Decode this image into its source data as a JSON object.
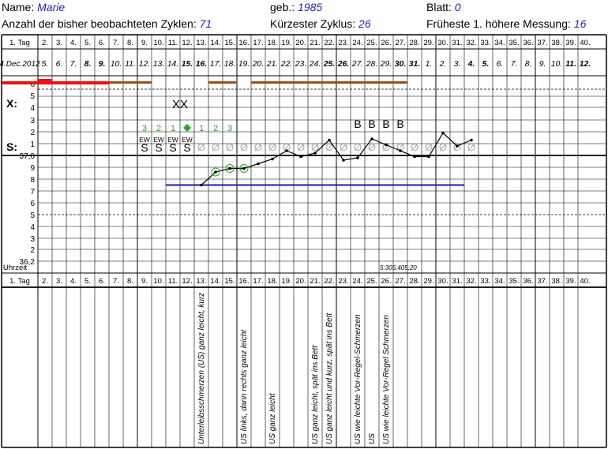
{
  "header": {
    "name_label": "Name:",
    "name_value": "Marie",
    "born_label": "geb.:",
    "born_value": "1985",
    "sheet_label": "Blatt:",
    "sheet_value": "0",
    "cycles_label": "Anzahl der bisher beobachteten Zyklen:",
    "cycles_value": "71",
    "shortest_label": "Kürzester Zyklus:",
    "shortest_value": "26",
    "earliest_label": "Früheste 1. höhere Messung:",
    "earliest_value": "16"
  },
  "grid": {
    "day_label": "1. Tag",
    "day_numbers": [
      "1. Tag",
      "2.",
      "3.",
      "4.",
      "5.",
      "6.",
      "7.",
      "8.",
      "9.",
      "10.",
      "11.",
      "12.",
      "13.",
      "14.",
      "15.",
      "16.",
      "17.",
      "18.",
      "19.",
      "20.",
      "21.",
      "22.",
      "23.",
      "24.",
      "25.",
      "26.",
      "27.",
      "28.",
      "29.",
      "30.",
      "31.",
      "32.",
      "33.",
      "34.",
      "35.",
      "36.",
      "37.",
      "38.",
      "39.",
      "40."
    ],
    "dates": [
      "4.Dec.2012",
      "5.",
      "6.",
      "7.",
      "8.",
      "9.",
      "10.",
      "11.",
      "12.",
      "13.",
      "14.",
      "15.",
      "16.",
      "17.",
      "18.",
      "19.",
      "20.",
      "21.",
      "22.",
      "23.",
      "24.",
      "25.",
      "26.",
      "27.",
      "28.",
      "29.",
      "30.",
      "31.",
      "1.",
      "2.",
      "3.",
      "4.",
      "5.",
      "6.",
      "7.",
      "8.",
      "9.",
      "10.",
      "11.",
      "12."
    ],
    "bold_dates": [
      4,
      5,
      11,
      12,
      21,
      22,
      26,
      27,
      31,
      32,
      38,
      39
    ],
    "bleed_label": "6",
    "bleed_levels": [
      "5",
      "4",
      "3",
      "2",
      "1"
    ],
    "x_label": "X:",
    "s_label": "S:",
    "temp_labels": [
      "37,0",
      "9",
      "8",
      "7",
      "6",
      "5",
      "4",
      "3",
      "2",
      "36,2"
    ],
    "time_label": "Uhrzeit",
    "time_value": "5:305:405:20"
  },
  "bleeding": [
    {
      "day": 1,
      "level": "medium"
    },
    {
      "day": 2,
      "level": "heavy"
    },
    {
      "day": 3,
      "level": "medium"
    },
    {
      "day": 4,
      "level": "medium"
    },
    {
      "day": 5,
      "level": "medium"
    },
    {
      "day": 6,
      "level": "medium"
    },
    {
      "day": 7,
      "level": "spotting"
    },
    {
      "day": 8,
      "level": "spotting"
    },
    {
      "day": 9,
      "level": "spotting"
    },
    {
      "day": 14,
      "level": "spotting"
    },
    {
      "day": 15,
      "level": "spotting"
    },
    {
      "day": 17,
      "level": "spotting"
    },
    {
      "day": 18,
      "level": "spotting"
    },
    {
      "day": 19,
      "level": "spotting"
    },
    {
      "day": 20,
      "level": "spotting"
    },
    {
      "day": 21,
      "level": "spotting"
    },
    {
      "day": 22,
      "level": "spotting"
    },
    {
      "day": 23,
      "level": "spotting"
    },
    {
      "day": 24,
      "level": "spotting"
    },
    {
      "day": 25,
      "level": "spotting"
    },
    {
      "day": 26,
      "level": "spotting"
    },
    {
      "day": 27,
      "level": "spotting"
    }
  ],
  "x_marks": [
    {
      "day": 12,
      "text": "XX"
    }
  ],
  "green_counts": [
    {
      "day": 9,
      "text": "3"
    },
    {
      "day": 10,
      "text": "2"
    },
    {
      "day": 11,
      "text": "1"
    },
    {
      "day": 13,
      "text": "1"
    },
    {
      "day": 14,
      "text": "2"
    },
    {
      "day": 15,
      "text": "3"
    }
  ],
  "peak_day": 12,
  "b_marks": [
    {
      "day": 24,
      "text": "B"
    },
    {
      "day": 25,
      "text": "B"
    },
    {
      "day": 26,
      "text": "B"
    },
    {
      "day": 27,
      "text": "B"
    }
  ],
  "ew_marks": [
    {
      "day": 9,
      "text": "EW"
    },
    {
      "day": 10,
      "text": "EW"
    },
    {
      "day": 11,
      "text": "EW"
    },
    {
      "day": 12,
      "text": "EW"
    }
  ],
  "s_marks": [
    {
      "day": 9,
      "text": "S"
    },
    {
      "day": 10,
      "text": "S"
    },
    {
      "day": 11,
      "text": "S"
    },
    {
      "day": 12,
      "text": "S"
    }
  ],
  "dry_marks": {
    "symbol": "Ø",
    "days": [
      13,
      14,
      15,
      16,
      17,
      18,
      19,
      20,
      21,
      22,
      23,
      24,
      25,
      26,
      27,
      28,
      29,
      30,
      31,
      32
    ]
  },
  "temperatures": [
    {
      "day": 13,
      "temp": 36.75,
      "circled": false
    },
    {
      "day": 14,
      "temp": 36.86,
      "circled": true
    },
    {
      "day": 15,
      "temp": 36.89,
      "circled": true
    },
    {
      "day": 16,
      "temp": 36.89,
      "circled": true
    },
    {
      "day": 17,
      "temp": 36.93,
      "circled": false
    },
    {
      "day": 18,
      "temp": 36.97,
      "circled": false
    },
    {
      "day": 19,
      "temp": 37.04,
      "circled": false
    },
    {
      "day": 20,
      "temp": 36.99,
      "circled": false
    },
    {
      "day": 21,
      "temp": 37.02,
      "circled": false
    },
    {
      "day": 22,
      "temp": 37.13,
      "circled": false
    },
    {
      "day": 23,
      "temp": 36.96,
      "circled": false
    },
    {
      "day": 24,
      "temp": 36.98,
      "circled": false
    },
    {
      "day": 25,
      "temp": 37.14,
      "circled": false
    },
    {
      "day": 26,
      "temp": 37.09,
      "circled": false
    },
    {
      "day": 27,
      "temp": 37.04,
      "circled": false
    },
    {
      "day": 28,
      "temp": 36.99,
      "circled": false
    },
    {
      "day": 29,
      "temp": 36.99,
      "circled": false
    },
    {
      "day": 30,
      "temp": 37.19,
      "circled": false
    },
    {
      "day": 31,
      "temp": 37.08,
      "circled": false
    },
    {
      "day": 32,
      "temp": 37.13,
      "circled": false
    }
  ],
  "cover_line": {
    "temp": 36.75,
    "from_day": 11,
    "to_day": 31
  },
  "notes": [
    {
      "day": 13,
      "text": "Unterleibsschmerzen (US) ganz leicht, kurz"
    },
    {
      "day": 16,
      "text": "US links, dann rechts ganz leicht"
    },
    {
      "day": 18,
      "text": "US ganz leicht"
    },
    {
      "day": 21,
      "text": "US ganz leicht, spät ins Bett"
    },
    {
      "day": 22,
      "text": "US ganz leicht und kurz, spät ins Bett"
    },
    {
      "day": 24,
      "text": "US wie leichte Vor-Regel-Schmerzen"
    },
    {
      "day": 25,
      "text": "US"
    },
    {
      "day": 26,
      "text": "US wie leichte Vor-Regel Schmerzen"
    }
  ],
  "colors": {
    "blue": "#1f1fbf",
    "bleed_red": "#ee1111",
    "spotting_brown": "#9c4f1a",
    "green": "#22aa22",
    "cover_line": "#1a1aa8"
  }
}
